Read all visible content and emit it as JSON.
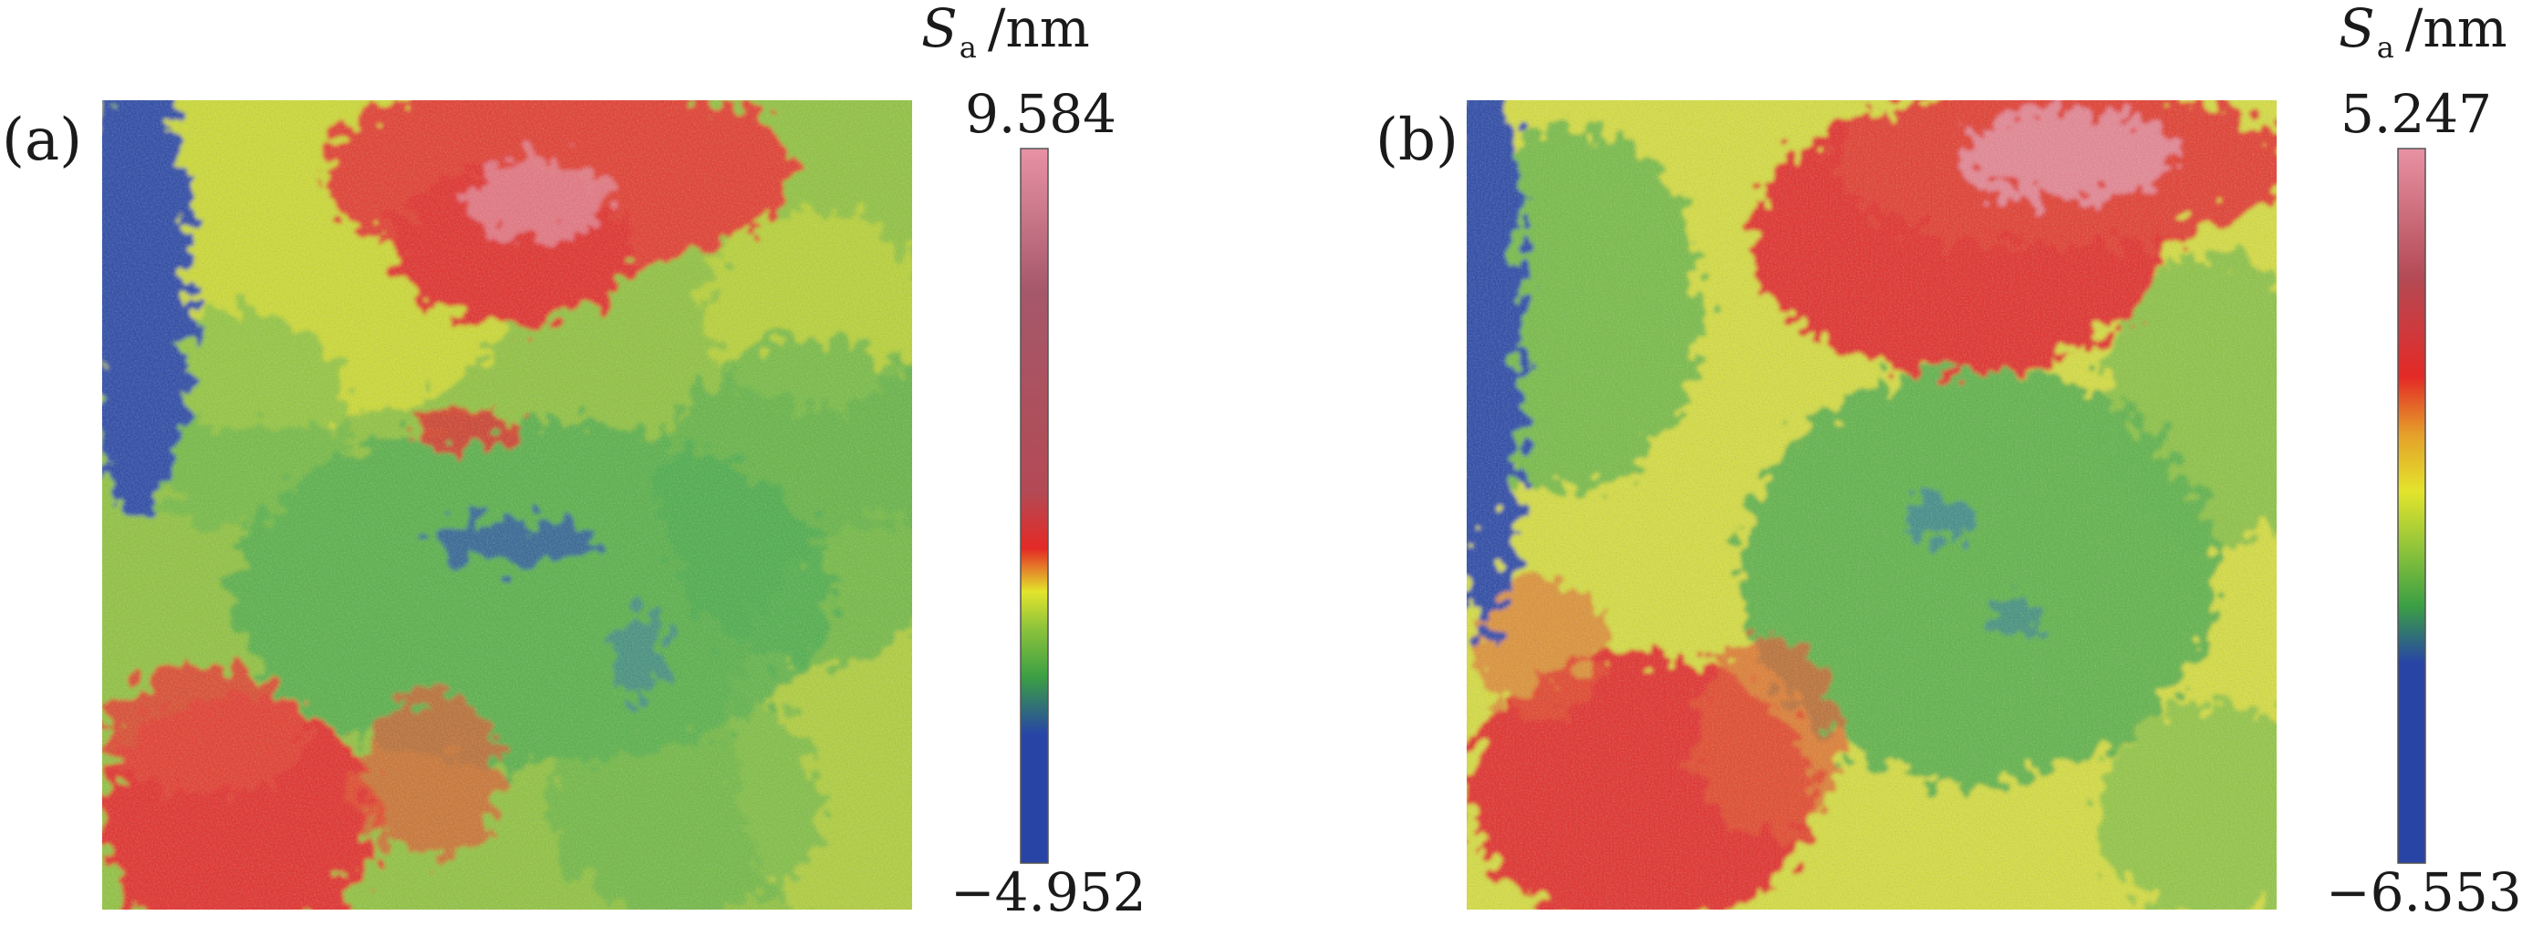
{
  "chart_data": [
    {
      "type": "heatmap",
      "panel_label": "(a)",
      "colorbar": {
        "symbol": "S",
        "subscript": "a",
        "unit": "/nm",
        "max": "9.584",
        "min": "−4.952"
      },
      "value_range": [
        -4.952,
        9.584
      ],
      "colors": [
        "#2845a6",
        "#3b9f44",
        "#e3e42c",
        "#e42a26",
        "#e892a4"
      ]
    },
    {
      "type": "heatmap",
      "panel_label": "(b)",
      "colorbar": {
        "symbol": "S",
        "subscript": "a",
        "unit": "/nm",
        "max": "5.247",
        "min": "−6.553"
      },
      "value_range": [
        -6.553,
        5.247
      ],
      "colors": [
        "#2845a6",
        "#3b9f44",
        "#e3e42c",
        "#e42a26",
        "#e892a4"
      ]
    }
  ]
}
